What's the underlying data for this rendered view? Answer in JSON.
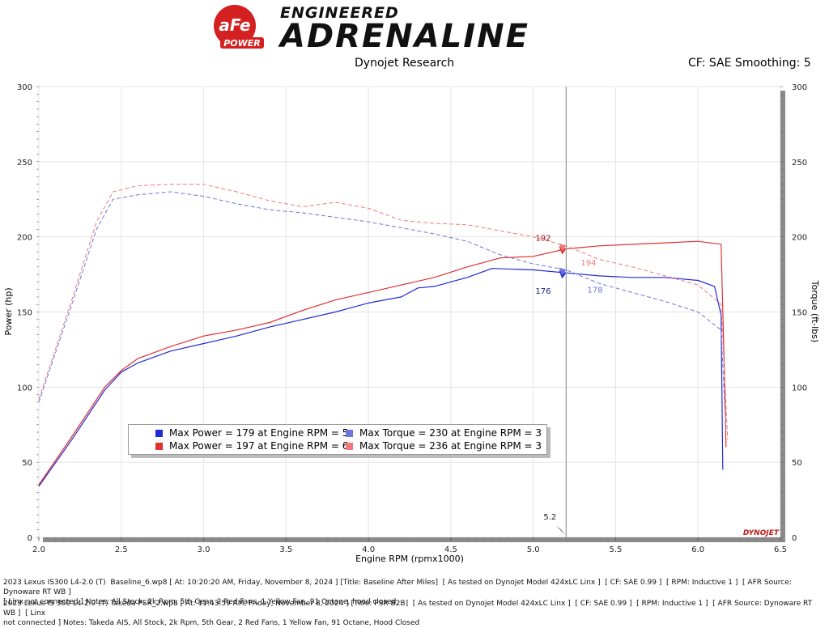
{
  "logo": {
    "brand": "aFe",
    "brand_sub": "POWER",
    "line1": "ENGINEERED",
    "line2": "ADRENALINE"
  },
  "header": {
    "center": "Dynojet Research",
    "right": "CF: SAE Smoothing: 5"
  },
  "colors": {
    "power_baseline": "#1f2bd6",
    "power_takeda": "#e03030",
    "torque_baseline": "#6f74de",
    "torque_takeda": "#ef7a7a",
    "cursor": "#9a9a9a"
  },
  "chart_data": {
    "type": "line",
    "xlabel": "Engine RPM (rpmx1000)",
    "ylabel_left": "Power (hp)",
    "ylabel_right": "Torque (ft-lbs)",
    "xlim": [
      2.0,
      6.5
    ],
    "ylim_left": [
      0,
      300
    ],
    "ylim_right": [
      0,
      300
    ],
    "x_ticks": [
      "2.0",
      "2.5",
      "3.0",
      "3.5",
      "4.0",
      "4.5",
      "5.0",
      "5.5",
      "6.0",
      "6.5"
    ],
    "y_ticks": [
      "0",
      "50",
      "100",
      "150",
      "200",
      "250",
      "300"
    ],
    "grid": true,
    "watermark": "DYNOJET",
    "cursor": {
      "x": 5.2,
      "label": "5.2"
    },
    "cursor_values": [
      {
        "value": "192",
        "series": "power_takeda"
      },
      {
        "value": "194",
        "series": "torque_takeda"
      },
      {
        "value": "176",
        "series": "power_baseline"
      },
      {
        "value": "178",
        "series": "torque_baseline"
      }
    ],
    "series": [
      {
        "key": "power_baseline",
        "dashed": false,
        "x": [
          2.0,
          2.2,
          2.4,
          2.5,
          2.6,
          2.8,
          3.0,
          3.2,
          3.4,
          3.6,
          3.8,
          4.0,
          4.2,
          4.3,
          4.4,
          4.6,
          4.75,
          5.0,
          5.2,
          5.4,
          5.6,
          5.8,
          6.0,
          6.1,
          6.14,
          6.15
        ],
        "y": [
          34,
          65,
          98,
          110,
          116,
          124,
          129,
          134,
          140,
          145,
          150,
          156,
          160,
          166,
          167,
          173,
          179,
          178,
          176,
          174,
          173,
          173,
          171,
          167,
          148,
          45
        ]
      },
      {
        "key": "power_takeda",
        "dashed": false,
        "x": [
          2.0,
          2.2,
          2.4,
          2.5,
          2.6,
          2.8,
          3.0,
          3.2,
          3.4,
          3.6,
          3.8,
          4.0,
          4.2,
          4.4,
          4.6,
          4.8,
          5.0,
          5.2,
          5.4,
          5.6,
          5.8,
          6.0,
          6.14,
          6.16,
          6.17
        ],
        "y": [
          35,
          67,
          100,
          111,
          119,
          127,
          134,
          138,
          143,
          151,
          158,
          163,
          168,
          173,
          180,
          186,
          187,
          192,
          194,
          195,
          196,
          197,
          195,
          110,
          60
        ]
      },
      {
        "key": "torque_baseline",
        "dashed": true,
        "x": [
          2.0,
          2.2,
          2.35,
          2.45,
          2.6,
          2.8,
          3.0,
          3.2,
          3.4,
          3.6,
          3.8,
          4.0,
          4.2,
          4.4,
          4.6,
          4.8,
          5.0,
          5.2,
          5.4,
          5.6,
          5.8,
          6.0,
          6.14,
          6.17
        ],
        "y": [
          90,
          155,
          205,
          225,
          228,
          230,
          227,
          222,
          218,
          216,
          213,
          210,
          206,
          202,
          197,
          188,
          182,
          178,
          169,
          163,
          157,
          150,
          138,
          70
        ]
      },
      {
        "key": "torque_takeda",
        "dashed": true,
        "x": [
          2.0,
          2.2,
          2.35,
          2.45,
          2.6,
          2.8,
          3.0,
          3.2,
          3.4,
          3.6,
          3.8,
          4.0,
          4.2,
          4.4,
          4.6,
          4.8,
          5.0,
          5.2,
          5.4,
          5.6,
          5.8,
          6.0,
          6.14,
          6.18
        ],
        "y": [
          92,
          158,
          210,
          230,
          234,
          235,
          235,
          230,
          224,
          220,
          223,
          219,
          211,
          209,
          208,
          204,
          200,
          194,
          185,
          180,
          174,
          168,
          155,
          65
        ]
      }
    ],
    "legend": [
      {
        "text": "Max Power = 179 at Engine RPM = 5",
        "series": "power_baseline"
      },
      {
        "text": "Max Torque = 230 at Engine RPM = 3",
        "series": "torque_baseline"
      },
      {
        "text": "Max Power = 197 at Engine RPM = 6",
        "series": "power_takeda"
      },
      {
        "text": "Max Torque = 236 at Engine RPM = 3",
        "series": "torque_takeda"
      }
    ]
  },
  "notes": {
    "run1": "2023 Lexus IS300 L4-2.0 (T)  Baseline_6.wp8 [ At: 10:20:20 AM, Friday, November 8, 2024 ] [Title: Baseline After Miles]  [ As tested on Dynojet Model 424xLC Linx ]  [ CF: SAE 0.99 ]  [ RPM: Inductive 1 ]  [ AFR Source: Dynoware RT WB ]\n[ Linx not connected ] Notes: All Stock, 2k Rpm, 5th Gear, 2 Red Fans, 1 Yellow Fan, 91 Octane, hood closed",
    "run2": "2023 Lexus IS 300 L4-2.0 (T) Takeda PSR_2.wp8 [ At: 11:43:59 AM, Friday, November 8, 2024 ] [Title: PSR B2B]  [ As tested on Dynojet Model 424xLC Linx ]  [ CF: SAE 0.99 ]  [ RPM: Inductive 1 ]  [ AFR Source: Dynoware RT WB ]  [ Linx\nnot connected ] Notes: Takeda AIS, All Stock, 2k Rpm, 5th Gear, 2 Red Fans, 1 Yellow Fan, 91 Octane, Hood Closed"
  }
}
